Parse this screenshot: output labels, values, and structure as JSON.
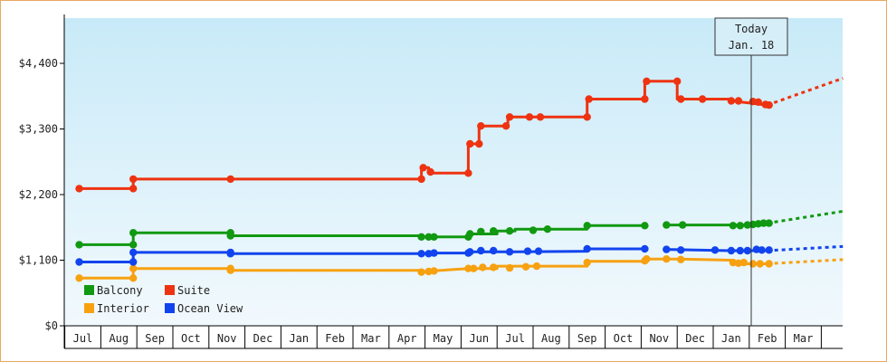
{
  "chart_data": {
    "type": "line",
    "today_marker": {
      "line1": "Today",
      "line2": "Jan. 18"
    },
    "y_axis": {
      "ylim": [
        0,
        4400
      ],
      "ticks": [
        {
          "value": 0,
          "label": "$0"
        },
        {
          "value": 1100,
          "label": "$1,100"
        },
        {
          "value": 2200,
          "label": "$2,200"
        },
        {
          "value": 3300,
          "label": "$3,300"
        },
        {
          "value": 4400,
          "label": "$4,400"
        }
      ]
    },
    "x_axis": {
      "months": [
        "Jul",
        "Aug",
        "Sep",
        "Oct",
        "Nov",
        "Dec",
        "Jan",
        "Feb",
        "Mar",
        "Apr",
        "May",
        "Jun",
        "Jul",
        "Aug",
        "Sep",
        "Oct",
        "Nov",
        "Dec",
        "Jan",
        "Feb",
        "Mar"
      ]
    },
    "legend": {
      "placement": "bottom-left"
    },
    "series": [
      {
        "name": "Balcony",
        "color": "#119911",
        "segments": [
          [
            [
              -0.1,
              1360
            ],
            [
              1.4,
              1360
            ],
            [
              1.4,
              1560
            ],
            [
              4.1,
              1560
            ],
            [
              4.1,
              1510
            ],
            [
              9.4,
              1510
            ],
            [
              9.4,
              1490
            ],
            [
              9.7,
              1490
            ],
            [
              10.7,
              1490
            ],
            [
              10.7,
              1540
            ],
            [
              11.5,
              1540
            ],
            [
              11.5,
              1590
            ],
            [
              12.0,
              1590
            ],
            [
              12.0,
              1620
            ],
            [
              14.0,
              1620
            ],
            [
              14.0,
              1680
            ],
            [
              15.6,
              1680
            ]
          ],
          [
            [
              16.2,
              1690
            ],
            [
              18.8,
              1690
            ],
            [
              18.8,
              1720
            ],
            [
              19.0,
              1720
            ]
          ]
        ],
        "markers": [
          [
            -0.1,
            1360
          ],
          [
            1.4,
            1360
          ],
          [
            1.4,
            1560
          ],
          [
            4.1,
            1510
          ],
          [
            4.1,
            1560
          ],
          [
            9.4,
            1490
          ],
          [
            9.6,
            1490
          ],
          [
            9.75,
            1490
          ],
          [
            10.7,
            1490
          ],
          [
            10.75,
            1540
          ],
          [
            11.05,
            1580
          ],
          [
            11.4,
            1590
          ],
          [
            11.85,
            1590
          ],
          [
            12.5,
            1600
          ],
          [
            12.9,
            1620
          ],
          [
            14.0,
            1680
          ],
          [
            15.6,
            1680
          ],
          [
            16.2,
            1690
          ],
          [
            16.65,
            1690
          ],
          [
            18.05,
            1680
          ],
          [
            18.25,
            1680
          ],
          [
            18.45,
            1690
          ],
          [
            18.6,
            1700
          ],
          [
            18.75,
            1710
          ],
          [
            18.9,
            1720
          ],
          [
            19.05,
            1720
          ]
        ],
        "forecast": [
          [
            19.0,
            1720
          ],
          [
            21.1,
            1920
          ]
        ]
      },
      {
        "name": "Suite",
        "color": "#ee3311",
        "segments": [
          [
            [
              -0.1,
              2300
            ],
            [
              1.4,
              2300
            ],
            [
              1.4,
              2460
            ],
            [
              4.1,
              2460
            ],
            [
              9.4,
              2460
            ],
            [
              9.4,
              2650
            ],
            [
              9.6,
              2650
            ],
            [
              9.6,
              2560
            ],
            [
              10.7,
              2560
            ],
            [
              10.7,
              3050
            ],
            [
              11.0,
              3050
            ],
            [
              11.0,
              3350
            ],
            [
              11.8,
              3350
            ],
            [
              11.8,
              3500
            ],
            [
              14.0,
              3500
            ],
            [
              14.0,
              3800
            ],
            [
              15.6,
              3800
            ],
            [
              15.6,
              4100
            ],
            [
              16.5,
              4100
            ],
            [
              16.5,
              3800
            ],
            [
              18.0,
              3800
            ],
            [
              18.0,
              3770
            ],
            [
              19.0,
              3700
            ]
          ]
        ],
        "markers": [
          [
            -0.1,
            2300
          ],
          [
            1.4,
            2300
          ],
          [
            1.4,
            2460
          ],
          [
            4.1,
            2460
          ],
          [
            9.4,
            2460
          ],
          [
            9.45,
            2650
          ],
          [
            9.65,
            2580
          ],
          [
            10.7,
            2560
          ],
          [
            10.75,
            3050
          ],
          [
            11.0,
            3050
          ],
          [
            11.05,
            3350
          ],
          [
            11.75,
            3350
          ],
          [
            11.85,
            3500
          ],
          [
            12.4,
            3500
          ],
          [
            12.7,
            3500
          ],
          [
            14.0,
            3500
          ],
          [
            14.05,
            3800
          ],
          [
            15.6,
            3800
          ],
          [
            15.65,
            4100
          ],
          [
            16.5,
            4100
          ],
          [
            16.6,
            3800
          ],
          [
            17.2,
            3800
          ],
          [
            18.0,
            3770
          ],
          [
            18.2,
            3770
          ],
          [
            18.6,
            3760
          ],
          [
            18.75,
            3750
          ],
          [
            18.95,
            3710
          ],
          [
            19.05,
            3700
          ]
        ],
        "forecast": [
          [
            19.0,
            3700
          ],
          [
            21.1,
            4150
          ]
        ]
      },
      {
        "name": "Interior",
        "color": "#f7a111",
        "segments": [
          [
            [
              -0.1,
              800
            ],
            [
              1.4,
              800
            ],
            [
              1.4,
              960
            ],
            [
              4.1,
              960
            ],
            [
              4.1,
              930
            ],
            [
              9.4,
              930
            ],
            [
              9.4,
              900
            ],
            [
              9.7,
              920
            ],
            [
              10.7,
              960
            ],
            [
              11.5,
              960
            ],
            [
              11.5,
              1000
            ],
            [
              12.0,
              1000
            ],
            [
              14.0,
              1000
            ],
            [
              14.0,
              1080
            ],
            [
              15.6,
              1080
            ],
            [
              15.6,
              1120
            ],
            [
              16.5,
              1120
            ],
            [
              18.0,
              1100
            ],
            [
              18.0,
              1040
            ],
            [
              19.0,
              1040
            ]
          ]
        ],
        "markers": [
          [
            -0.1,
            800
          ],
          [
            1.4,
            800
          ],
          [
            1.4,
            960
          ],
          [
            4.1,
            930
          ],
          [
            4.1,
            960
          ],
          [
            9.4,
            900
          ],
          [
            9.6,
            910
          ],
          [
            9.75,
            920
          ],
          [
            10.7,
            960
          ],
          [
            10.85,
            960
          ],
          [
            11.1,
            980
          ],
          [
            11.4,
            980
          ],
          [
            11.85,
            970
          ],
          [
            12.3,
            990
          ],
          [
            12.6,
            1000
          ],
          [
            14.0,
            1060
          ],
          [
            15.6,
            1090
          ],
          [
            15.65,
            1120
          ],
          [
            16.2,
            1120
          ],
          [
            16.6,
            1110
          ],
          [
            18.05,
            1060
          ],
          [
            18.2,
            1050
          ],
          [
            18.35,
            1060
          ],
          [
            18.6,
            1040
          ],
          [
            18.8,
            1040
          ],
          [
            19.05,
            1040
          ]
        ],
        "forecast": [
          [
            19.0,
            1040
          ],
          [
            21.1,
            1110
          ]
        ]
      },
      {
        "name": "Ocean View",
        "color": "#1144ee",
        "segments": [
          [
            [
              -0.1,
              1070
            ],
            [
              1.4,
              1070
            ],
            [
              1.4,
              1230
            ],
            [
              4.1,
              1230
            ],
            [
              4.1,
              1210
            ],
            [
              9.4,
              1210
            ],
            [
              9.7,
              1220
            ],
            [
              10.7,
              1220
            ],
            [
              10.7,
              1240
            ],
            [
              12.0,
              1240
            ],
            [
              14.0,
              1250
            ],
            [
              14.0,
              1290
            ],
            [
              15.6,
              1290
            ]
          ],
          [
            [
              16.2,
              1280
            ],
            [
              18.0,
              1260
            ],
            [
              19.0,
              1260
            ]
          ]
        ],
        "markers": [
          [
            -0.1,
            1070
          ],
          [
            1.4,
            1070
          ],
          [
            1.4,
            1230
          ],
          [
            4.1,
            1210
          ],
          [
            4.1,
            1230
          ],
          [
            9.4,
            1210
          ],
          [
            9.6,
            1210
          ],
          [
            9.75,
            1220
          ],
          [
            10.7,
            1220
          ],
          [
            10.75,
            1240
          ],
          [
            11.05,
            1260
          ],
          [
            11.4,
            1260
          ],
          [
            11.85,
            1240
          ],
          [
            12.35,
            1250
          ],
          [
            12.65,
            1250
          ],
          [
            14.0,
            1290
          ],
          [
            15.6,
            1290
          ],
          [
            16.2,
            1280
          ],
          [
            16.6,
            1270
          ],
          [
            17.55,
            1270
          ],
          [
            18.0,
            1260
          ],
          [
            18.25,
            1260
          ],
          [
            18.45,
            1260
          ],
          [
            18.7,
            1280
          ],
          [
            18.85,
            1270
          ],
          [
            19.05,
            1270
          ]
        ],
        "forecast": [
          [
            19.0,
            1260
          ],
          [
            21.1,
            1330
          ]
        ]
      }
    ]
  }
}
